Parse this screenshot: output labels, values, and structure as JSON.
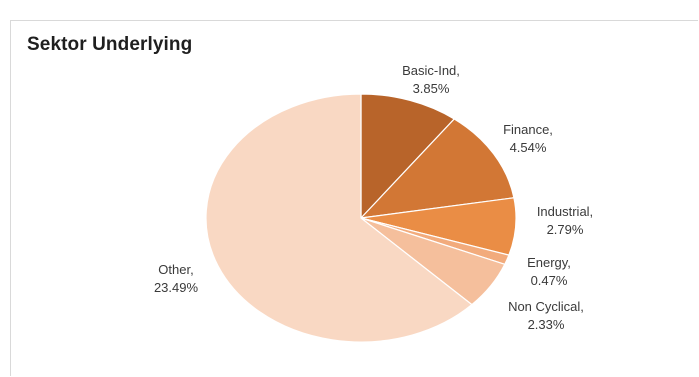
{
  "chart_data": {
    "type": "pie",
    "title": "Sektor Underlying",
    "start_angle_deg": 0,
    "direction": "clockwise",
    "slices": [
      {
        "name": "Basic-Ind",
        "value": 3.85,
        "label_name": "Basic-Ind,",
        "label_value": "3.85%",
        "color": "#b8642a"
      },
      {
        "name": "Finance",
        "value": 4.54,
        "label_name": "Finance,",
        "label_value": "4.54%",
        "color": "#d27735"
      },
      {
        "name": "Industrial",
        "value": 2.79,
        "label_name": "Industrial,",
        "label_value": "2.79%",
        "color": "#ea8d45"
      },
      {
        "name": "Energy",
        "value": 0.47,
        "label_name": "Energy,",
        "label_value": "0.47%",
        "color": "#f2ab7c"
      },
      {
        "name": "Non Cyclical",
        "value": 2.33,
        "label_name": "Non Cyclical,",
        "label_value": "2.33%",
        "color": "#f5bf9c"
      },
      {
        "name": "Other",
        "value": 23.49,
        "label_name": "Other,",
        "label_value": "23.49%",
        "color": "#f9d8c3"
      }
    ]
  }
}
